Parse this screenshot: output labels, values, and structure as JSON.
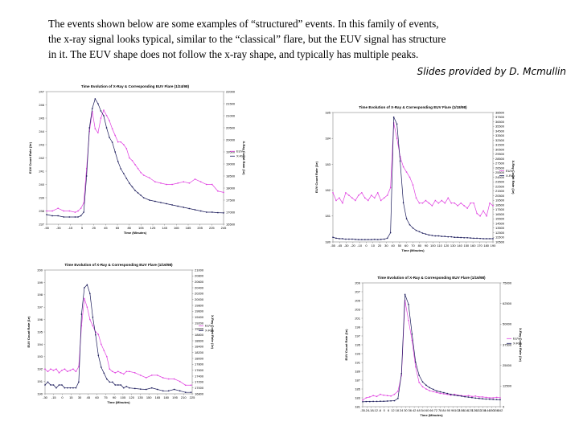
{
  "slide": {
    "intro_lines": [
      "The events shown below are some examples of “structured” events.  In this family of events,",
      "the x-ray signal looks typical, similar to the “classical” flare, but the EUV signal has structure",
      "in it.  The EUV shape does not follow the x-ray shape, and typically has multiple peaks."
    ],
    "credit": "Slides provided by D. Mcmullin"
  },
  "colors": {
    "euv": "#e040e0",
    "xray": "#1a1a5a",
    "frame": "#888888"
  },
  "chart_data": [
    {
      "type": "line",
      "title": "Time Evolution of X-Ray & Corresponding EUV Flare (1/24/98)",
      "xlabel": "Time (Minutes)",
      "ylabel": "EUV Count Rate (1e)",
      "y2label": "X-Ray Count Rate (1e)",
      "x_ticks": [
        "-55",
        "-35",
        "-15",
        "5",
        "25",
        "45",
        "65",
        "85",
        "105",
        "125",
        "145",
        "165",
        "185",
        "205",
        "225",
        "245"
      ],
      "y_ticks": [
        "237",
        "238",
        "239",
        "240",
        "241",
        "242",
        "243",
        "244",
        "245",
        "246",
        "247"
      ],
      "y2_ticks": [
        "16500",
        "17000",
        "17500",
        "18000",
        "18500",
        "19000",
        "19500",
        "20000",
        "20500",
        "21000",
        "21500",
        "22000"
      ],
      "ylim": [
        237,
        247
      ],
      "y2lim": [
        16500,
        22000
      ],
      "xlim": [
        -55,
        255
      ],
      "legend": [
        "EUV",
        "X-Ray"
      ],
      "x": [
        -55,
        -45,
        -35,
        -25,
        -15,
        -5,
        0,
        5,
        10,
        15,
        20,
        25,
        30,
        35,
        40,
        45,
        50,
        55,
        60,
        65,
        70,
        75,
        80,
        85,
        90,
        95,
        100,
        105,
        110,
        115,
        125,
        135,
        145,
        155,
        165,
        175,
        185,
        195,
        205,
        215,
        225,
        235,
        245,
        255
      ],
      "series": [
        {
          "name": "EUV",
          "axis": "left",
          "values": [
            238.0,
            238.0,
            238.2,
            238.0,
            238.0,
            237.9,
            238.0,
            238.2,
            238.6,
            241.2,
            244.0,
            245.5,
            244.2,
            243.9,
            245.0,
            245.6,
            245.2,
            244.8,
            244.2,
            243.7,
            243.2,
            243.2,
            243.0,
            242.7,
            242.0,
            241.8,
            241.5,
            241.2,
            240.9,
            240.7,
            240.5,
            240.2,
            240.1,
            240.0,
            240.0,
            240.1,
            240.2,
            240.1,
            240.4,
            240.2,
            240.0,
            240.0,
            239.5,
            239.4
          ]
        },
        {
          "name": "X-Ray",
          "axis": "right",
          "values": [
            16900,
            16850,
            16850,
            16800,
            16800,
            16800,
            16800,
            16850,
            17000,
            18500,
            20500,
            21300,
            21700,
            21500,
            21200,
            21000,
            20500,
            20100,
            19900,
            19500,
            19100,
            18800,
            18600,
            18400,
            18200,
            18050,
            17900,
            17800,
            17700,
            17600,
            17500,
            17450,
            17400,
            17350,
            17300,
            17250,
            17200,
            17150,
            17100,
            17050,
            17000,
            17000,
            16980,
            16970
          ]
        }
      ]
    },
    {
      "type": "line",
      "title": "Time Evolution of X-Ray & Corresponding EUV Flare (1/18/98)",
      "xlabel": "Time (Minutes)",
      "ylabel": "EUV Count Rate (1e)",
      "y2label": "X-Ray Count Rate (1e)",
      "x_ticks": [
        "-55",
        "-45",
        "-30",
        "-20",
        "-10",
        "0",
        "10",
        "20",
        "30",
        "40",
        "50",
        "60",
        "70",
        "80",
        "90",
        "100",
        "110",
        "120",
        "130",
        "140",
        "150",
        "160",
        "170",
        "180",
        "190"
      ],
      "y_ticks": [
        "180",
        "181",
        "182",
        "183",
        "184",
        "185"
      ],
      "y2_ticks": [
        "10500",
        "11500",
        "12500",
        "13500",
        "14500",
        "15500",
        "16500",
        "17500",
        "18500",
        "19500",
        "20500",
        "21500",
        "22500",
        "23500",
        "24500",
        "25500",
        "26500",
        "27500",
        "28500",
        "29500",
        "30500",
        "31500",
        "32500",
        "33500",
        "34500",
        "35500",
        "36500",
        "37500",
        "38500"
      ],
      "ylim": [
        180,
        185
      ],
      "y2lim": [
        10500,
        38500
      ],
      "xlim": [
        -55,
        195
      ],
      "legend": [
        "EUV",
        "X-Ray"
      ],
      "x": [
        -55,
        -50,
        -45,
        -40,
        -35,
        -30,
        -25,
        -20,
        -15,
        -10,
        -5,
        0,
        5,
        10,
        15,
        20,
        25,
        30,
        35,
        40,
        45,
        50,
        55,
        60,
        65,
        70,
        75,
        80,
        85,
        90,
        95,
        100,
        105,
        110,
        115,
        120,
        125,
        130,
        135,
        140,
        145,
        150,
        155,
        160,
        165,
        170,
        175,
        180,
        185,
        190,
        195
      ],
      "series": [
        {
          "name": "EUV",
          "axis": "left",
          "values": [
            181.9,
            181.6,
            181.7,
            181.5,
            181.9,
            181.8,
            181.7,
            181.6,
            181.8,
            181.9,
            181.7,
            181.6,
            181.8,
            181.7,
            181.9,
            181.6,
            181.7,
            181.8,
            182.1,
            184.6,
            184.0,
            183.3,
            182.9,
            182.7,
            182.5,
            182.2,
            181.7,
            181.5,
            181.5,
            181.6,
            181.5,
            181.4,
            181.6,
            181.5,
            181.6,
            181.5,
            181.7,
            181.5,
            181.5,
            181.4,
            181.5,
            181.4,
            181.3,
            181.5,
            181.5,
            181.1,
            181.0,
            181.2,
            181.0,
            181.5,
            181.4
          ]
        },
        {
          "name": "X-Ray",
          "axis": "right",
          "values": [
            11500,
            11300,
            11200,
            11200,
            11100,
            11100,
            11100,
            11050,
            11000,
            11000,
            11000,
            11000,
            11000,
            11050,
            11000,
            11050,
            11100,
            11300,
            12500,
            37500,
            36000,
            28000,
            19000,
            15500,
            14200,
            13500,
            13000,
            12700,
            12400,
            12200,
            12000,
            11900,
            11800,
            11800,
            11700,
            11700,
            11600,
            11600,
            11500,
            11500,
            11450,
            11400,
            11400,
            11350,
            11300,
            11300,
            11250,
            11200,
            11200,
            11200,
            11200
          ]
        }
      ]
    },
    {
      "type": "line",
      "title": "Time Evolution of X-Ray & Corresponding EUV Flare (1/16/98)",
      "xlabel": "Time (Minutes)",
      "ylabel": "EUV Count Rate (1e)",
      "y2label": "X-Ray Count Rate (1e)",
      "x_ticks": [
        "-30",
        "-15",
        "0",
        "15",
        "30",
        "45",
        "60",
        "75",
        "90",
        "105",
        "120",
        "135",
        "150",
        "165",
        "180",
        "195",
        "210",
        "225"
      ],
      "y_ticks": [
        "190",
        "191",
        "192",
        "193",
        "194",
        "195",
        "196",
        "197",
        "198",
        "199",
        "200"
      ],
      "y2_ticks": [
        "16800",
        "17000",
        "17200",
        "17400",
        "17600",
        "17800",
        "18000",
        "18200",
        "18400",
        "18600",
        "18800",
        "19000",
        "19200",
        "19400",
        "19600",
        "19800",
        "20000",
        "20200",
        "20400",
        "20600",
        "20800",
        "21000"
      ],
      "ylim": [
        190,
        200
      ],
      "y2lim": [
        16800,
        21000
      ],
      "xlim": [
        -30,
        232
      ],
      "legend": [
        "EUV",
        "X-Ray"
      ],
      "x": [
        -30,
        -25,
        -20,
        -15,
        -10,
        -5,
        0,
        5,
        10,
        15,
        20,
        25,
        30,
        35,
        40,
        45,
        50,
        55,
        60,
        65,
        70,
        75,
        80,
        85,
        90,
        95,
        100,
        105,
        110,
        115,
        120,
        130,
        140,
        150,
        160,
        170,
        180,
        190,
        200,
        210,
        220,
        230
      ],
      "series": [
        {
          "name": "EUV",
          "axis": "left",
          "values": [
            192.0,
            191.8,
            192.0,
            191.9,
            192.0,
            191.7,
            191.9,
            192.0,
            191.8,
            191.9,
            192.0,
            191.8,
            192.2,
            195.5,
            197.7,
            197.0,
            196.0,
            195.5,
            195.0,
            194.8,
            194.0,
            193.5,
            193.0,
            192.0,
            191.8,
            191.7,
            191.8,
            191.7,
            191.6,
            191.8,
            191.8,
            191.7,
            191.5,
            191.3,
            191.5,
            191.5,
            191.3,
            191.2,
            191.2,
            191.0,
            190.7,
            190.7
          ]
        },
        {
          "name": "X-Ray",
          "axis": "right",
          "values": [
            17100,
            17200,
            17100,
            17100,
            17000,
            17100,
            17100,
            17000,
            17000,
            17000,
            17000,
            17000,
            17200,
            19500,
            20400,
            20500,
            20200,
            19400,
            18800,
            18100,
            17700,
            17500,
            17300,
            17200,
            17200,
            17100,
            17100,
            17100,
            17000,
            17050,
            17000,
            16980,
            16960,
            16950,
            17000,
            16950,
            16900,
            16900,
            16950,
            16900,
            16850,
            16850
          ]
        }
      ]
    },
    {
      "type": "line",
      "title": "Time Evolution of X-Ray & Corresponding EUV Flare (1/16/98)",
      "xlabel": "Time (Minutes)",
      "ylabel": "EUV Count Rate (1e)",
      "y2label": "X-Ray Count Rate (1e)",
      "x_ticks": [
        "-30",
        "-24",
        "-18",
        "-12",
        "-6",
        "0",
        "6",
        "12",
        "18",
        "24",
        "30",
        "36",
        "42",
        "48",
        "54",
        "60",
        "66",
        "72",
        "78",
        "84",
        "90",
        "96",
        "102",
        "108",
        "114",
        "120",
        "126",
        "132",
        "138",
        "144",
        "150",
        "156",
        "162"
      ],
      "y_ticks": [
        "181",
        "183",
        "185",
        "187",
        "189",
        "191",
        "193",
        "195",
        "197",
        "199",
        "201",
        "203",
        "205",
        "207",
        "209"
      ],
      "y2_ticks": [
        "0",
        "12500",
        "25000",
        "37500",
        "50000",
        "62500",
        "75000"
      ],
      "ylim": [
        181,
        209
      ],
      "y2lim": [
        0,
        75000
      ],
      "xlim": [
        -30,
        165
      ],
      "legend": [
        "EUV",
        "X-Ray"
      ],
      "x": [
        -30,
        -25,
        -20,
        -15,
        -10,
        -5,
        0,
        5,
        10,
        15,
        20,
        25,
        30,
        35,
        40,
        45,
        50,
        55,
        60,
        65,
        70,
        75,
        80,
        85,
        90,
        95,
        100,
        105,
        110,
        115,
        120,
        125,
        130,
        135,
        140,
        145,
        150,
        155,
        160,
        165
      ],
      "series": [
        {
          "name": "EUV",
          "axis": "left",
          "values": [
            182.5,
            183.0,
            183.2,
            183.5,
            183.3,
            183.8,
            183.6,
            183.5,
            183.4,
            183.8,
            184.5,
            188.0,
            205.0,
            200.5,
            196.0,
            190.0,
            186.5,
            185.5,
            185.0,
            184.6,
            184.4,
            184.2,
            184.0,
            183.9,
            183.8,
            183.6,
            183.8,
            183.6,
            183.5,
            183.4,
            183.5,
            183.3,
            183.4,
            183.2,
            183.2,
            183.1,
            183.0,
            183.0,
            183.1,
            183.0
          ]
        },
        {
          "name": "X-Ray",
          "axis": "right",
          "values": [
            3000,
            3100,
            3100,
            3200,
            3200,
            3300,
            3300,
            3400,
            3500,
            3600,
            5000,
            20000,
            68000,
            62000,
            44000,
            27000,
            19000,
            15000,
            13000,
            11500,
            10500,
            9500,
            9000,
            8500,
            8000,
            7500,
            7000,
            6700,
            6400,
            6000,
            5800,
            5500,
            5200,
            5000,
            4800,
            4600,
            4500,
            4400,
            4300,
            4200
          ]
        }
      ]
    }
  ]
}
